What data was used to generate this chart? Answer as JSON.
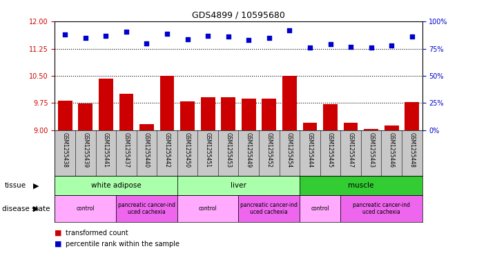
{
  "title": "GDS4899 / 10595680",
  "samples": [
    "GSM1255438",
    "GSM1255439",
    "GSM1255441",
    "GSM1255437",
    "GSM1255440",
    "GSM1255442",
    "GSM1255450",
    "GSM1255451",
    "GSM1255453",
    "GSM1255449",
    "GSM1255452",
    "GSM1255454",
    "GSM1255444",
    "GSM1255445",
    "GSM1255447",
    "GSM1255443",
    "GSM1255446",
    "GSM1255448"
  ],
  "transformed_count": [
    9.82,
    9.73,
    10.42,
    10.0,
    9.17,
    10.5,
    9.8,
    9.9,
    9.9,
    9.88,
    9.88,
    10.5,
    9.2,
    9.72,
    9.2,
    9.03,
    9.12,
    9.78
  ],
  "percentile_rank": [
    88,
    85,
    87,
    91,
    80,
    89,
    84,
    87,
    86,
    83,
    85,
    92,
    76,
    79,
    77,
    76,
    78,
    86
  ],
  "ylim_left": [
    9,
    12
  ],
  "ylim_right": [
    0,
    100
  ],
  "yticks_left": [
    9,
    9.75,
    10.5,
    11.25,
    12
  ],
  "yticks_right": [
    0,
    25,
    50,
    75,
    100
  ],
  "bar_color": "#cc0000",
  "scatter_color": "#0000cc",
  "tissue_groups": [
    {
      "label": "white adipose",
      "start": 0,
      "end": 5,
      "color": "#99ff99"
    },
    {
      "label": "liver",
      "start": 6,
      "end": 11,
      "color": "#66ee66"
    },
    {
      "label": "muscle",
      "start": 12,
      "end": 17,
      "color": "#33cc33"
    }
  ],
  "disease_groups": [
    {
      "label": "control",
      "start": 0,
      "end": 2,
      "color": "#ffaaff"
    },
    {
      "label": "pancreatic cancer-ind\nuced cachexia",
      "start": 3,
      "end": 5,
      "color": "#ee66ee"
    },
    {
      "label": "control",
      "start": 6,
      "end": 8,
      "color": "#ffaaff"
    },
    {
      "label": "pancreatic cancer-ind\nuced cachexia",
      "start": 9,
      "end": 11,
      "color": "#ee66ee"
    },
    {
      "label": "control",
      "start": 12,
      "end": 13,
      "color": "#ffaaff"
    },
    {
      "label": "pancreatic cancer-ind\nuced cachexia",
      "start": 14,
      "end": 17,
      "color": "#ee66ee"
    }
  ],
  "xtick_bg": "#c8c8c8",
  "grid_dotted_values": [
    9.75,
    10.5,
    11.25
  ]
}
